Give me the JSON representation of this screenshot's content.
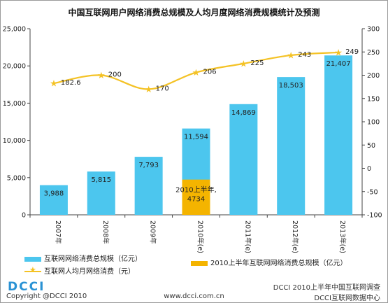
{
  "title": "中国互联网用户网络消费总规模及人均月度网络消费规模统计及预测",
  "chart_data": {
    "type": "bar",
    "categories": [
      "2007年",
      "2008年",
      "2009年",
      "2010年(e)",
      "2011年(e)",
      "2012年(e)",
      "2013年(e)"
    ],
    "series": [
      {
        "name": "互联网网络消费总规模（亿元）",
        "type": "bar",
        "axis": "left",
        "color": "#4cc6ee",
        "values": [
          3988,
          5815,
          7793,
          11594,
          14869,
          18503,
          21407
        ],
        "labels": [
          "3,988",
          "5,815",
          "7,793",
          "11,594",
          "14,869",
          "18,503",
          "21,407"
        ]
      },
      {
        "name": "2010上半年互联网网络消费总规模（亿元）",
        "type": "bar",
        "axis": "left",
        "color": "#f4b400",
        "values": [
          null,
          null,
          null,
          4734,
          null,
          null,
          null
        ],
        "labels": [
          null,
          null,
          null,
          "2010上半年,\n4734",
          null,
          null,
          null
        ]
      },
      {
        "name": "互联网人均月网络消费（元）",
        "type": "line",
        "axis": "right",
        "color": "#f4c225",
        "values": [
          182.6,
          200,
          170,
          206,
          225,
          243,
          249
        ],
        "labels": [
          "182.6",
          "200",
          "170",
          "206",
          "225",
          "243",
          "249"
        ]
      }
    ],
    "ylim_left": [
      0,
      25000
    ],
    "yticks_left": [
      "0",
      "5,000",
      "10,000",
      "15,000",
      "20,000",
      "25,000"
    ],
    "ylim_right": [
      -100,
      300
    ],
    "yticks_right": [
      "-100",
      "-50",
      "0",
      "50",
      "100",
      "150",
      "200",
      "250",
      "300"
    ],
    "grid": false,
    "legend_placement": "bottom"
  },
  "footer": {
    "logo": "DCCI",
    "copyright": "Copyright  @DCCI  2010",
    "website": "www.dcci.com.cn",
    "survey_note": "DCCI 2010上半年中国互联网调查",
    "center_note": "DCCI互联网数据中心"
  }
}
